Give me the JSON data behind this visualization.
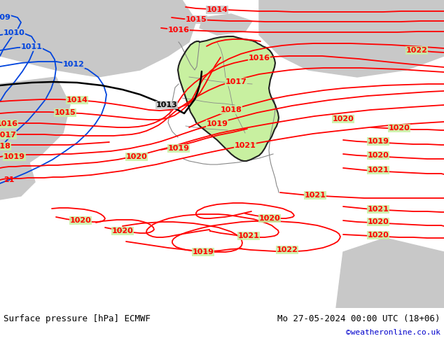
{
  "title_left": "Surface pressure [hPa] ECMWF",
  "title_right": "Mo 27-05-2024 00:00 UTC (18+06)",
  "credit": "©weatheronline.co.uk",
  "bg_green": "#c8f0a0",
  "bg_gray": "#c8c8c8",
  "border_color": "#222222",
  "neighbor_border": "#888888",
  "red": "#ff0000",
  "blue": "#0044dd",
  "black": "#000000",
  "footer_bg": "#ffffff",
  "credit_color": "#0000cc",
  "lw_main": 1.3,
  "lw_black": 1.8,
  "lw_blue": 1.3,
  "fs_label": 8,
  "fs_footer": 9
}
